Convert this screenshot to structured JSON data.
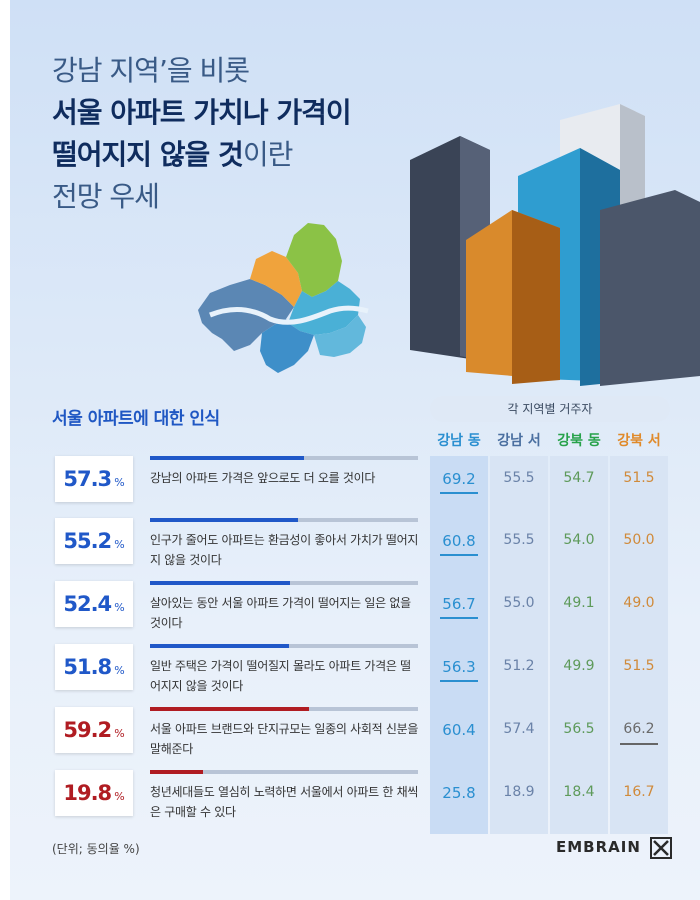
{
  "headline": {
    "line1": "강남 지역’을 비롯",
    "line2": "서울 아파트 가치나 가격이",
    "line3_bold": "떨어지지 않을 것",
    "line3_light": "이란",
    "line4": "전망 우세"
  },
  "section_title": "서울 아파트에 대한 인식",
  "residents_header": "각 지역별 거주자",
  "columns": [
    {
      "label": "강남 동",
      "color": "#2a8fd0"
    },
    {
      "label": "강남 서",
      "color": "#4a6fa0"
    },
    {
      "label": "강북 동",
      "color": "#27a24a"
    },
    {
      "label": "강북 서",
      "color": "#e08a2a"
    }
  ],
  "chart_data": {
    "type": "table",
    "unit": "동의율 %",
    "series_names": [
      "강남 동",
      "강남 서",
      "강북 동",
      "강북 서"
    ],
    "rows": [
      {
        "total": "57.3",
        "unit": "%",
        "statement": "강남의 아파트 가격은 앞으로도 더 오를 것이다",
        "values": [
          "69.2",
          "55.5",
          "54.7",
          "51.5"
        ],
        "highlight": 0
      },
      {
        "total": "55.2",
        "unit": "%",
        "statement": "인구가 줄어도 아파트는 환금성이 좋아서 가치가 떨어지지 않을 것이다",
        "values": [
          "60.8",
          "55.5",
          "54.0",
          "50.0"
        ],
        "highlight": 0
      },
      {
        "total": "52.4",
        "unit": "%",
        "statement": "살아있는 동안 서울 아파트 가격이 떨어지는 일은 없을 것이다",
        "values": [
          "56.7",
          "55.0",
          "49.1",
          "49.0"
        ],
        "highlight": 0
      },
      {
        "total": "51.8",
        "unit": "%",
        "statement": "일반 주택은 가격이 떨어질지 몰라도 아파트 가격은 떨어지지 않을 것이다",
        "values": [
          "56.3",
          "51.2",
          "49.9",
          "51.5"
        ],
        "highlight": 0
      },
      {
        "total": "59.2",
        "unit": "%",
        "statement": "서울 아파트 브랜드와 단지규모는 일종의 사회적 신분을 말해준다",
        "values": [
          "60.4",
          "57.4",
          "56.5",
          "66.2"
        ],
        "highlight": 3
      },
      {
        "total": "19.8",
        "unit": "%",
        "statement": "청년세대들도 열심히 노력하면 서울에서 아파트 한 채씩은 구매할 수 있다",
        "values": [
          "25.8",
          "18.9",
          "18.4",
          "16.7"
        ],
        "highlight": null
      }
    ]
  },
  "colors": {
    "blue": "#2058c8",
    "red": "#b01c22",
    "track": "#b8c4d6"
  },
  "footnote": "(단위; 동의율 %)",
  "brand": "EMBRAIN"
}
